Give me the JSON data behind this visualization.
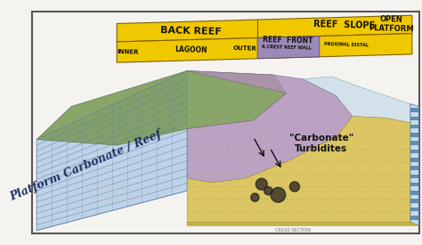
{
  "bg_color": "#f5f3f0",
  "border_color": "#555555",
  "labels": {
    "back_reef": "BACK REEF",
    "inner": "INNER",
    "lagoon": "LAGOON",
    "outer": "OUTER",
    "reef_front": "REEF  FRONT",
    "reef_crest": "R.CREST REEF WALL",
    "reef_slope": "REEF  SLOPE",
    "proximal_distal": "PROXIMAL DISTAL",
    "open_platform": "OPEN\nPLATFORM",
    "platform_carbonate": "Platform Carbonate / Reef",
    "carbonate_turbidites": "\"Carbonate\"\nTurbidites"
  },
  "colors": {
    "yellow_band": "#f0c800",
    "purple_band": "#9b8ab8",
    "blue_face": "#b8d0e8",
    "green_top": "#7a9a58",
    "purple_reef": "#b090b8",
    "yellow_floor": "#d8c050",
    "light_blue_top": "#c8dce8",
    "right_face": "#88aabf",
    "brick_line": "#6080a8",
    "dark": "#222222",
    "watermark": "#d0ccc8"
  },
  "figsize": [
    4.74,
    2.75
  ],
  "dpi": 100
}
